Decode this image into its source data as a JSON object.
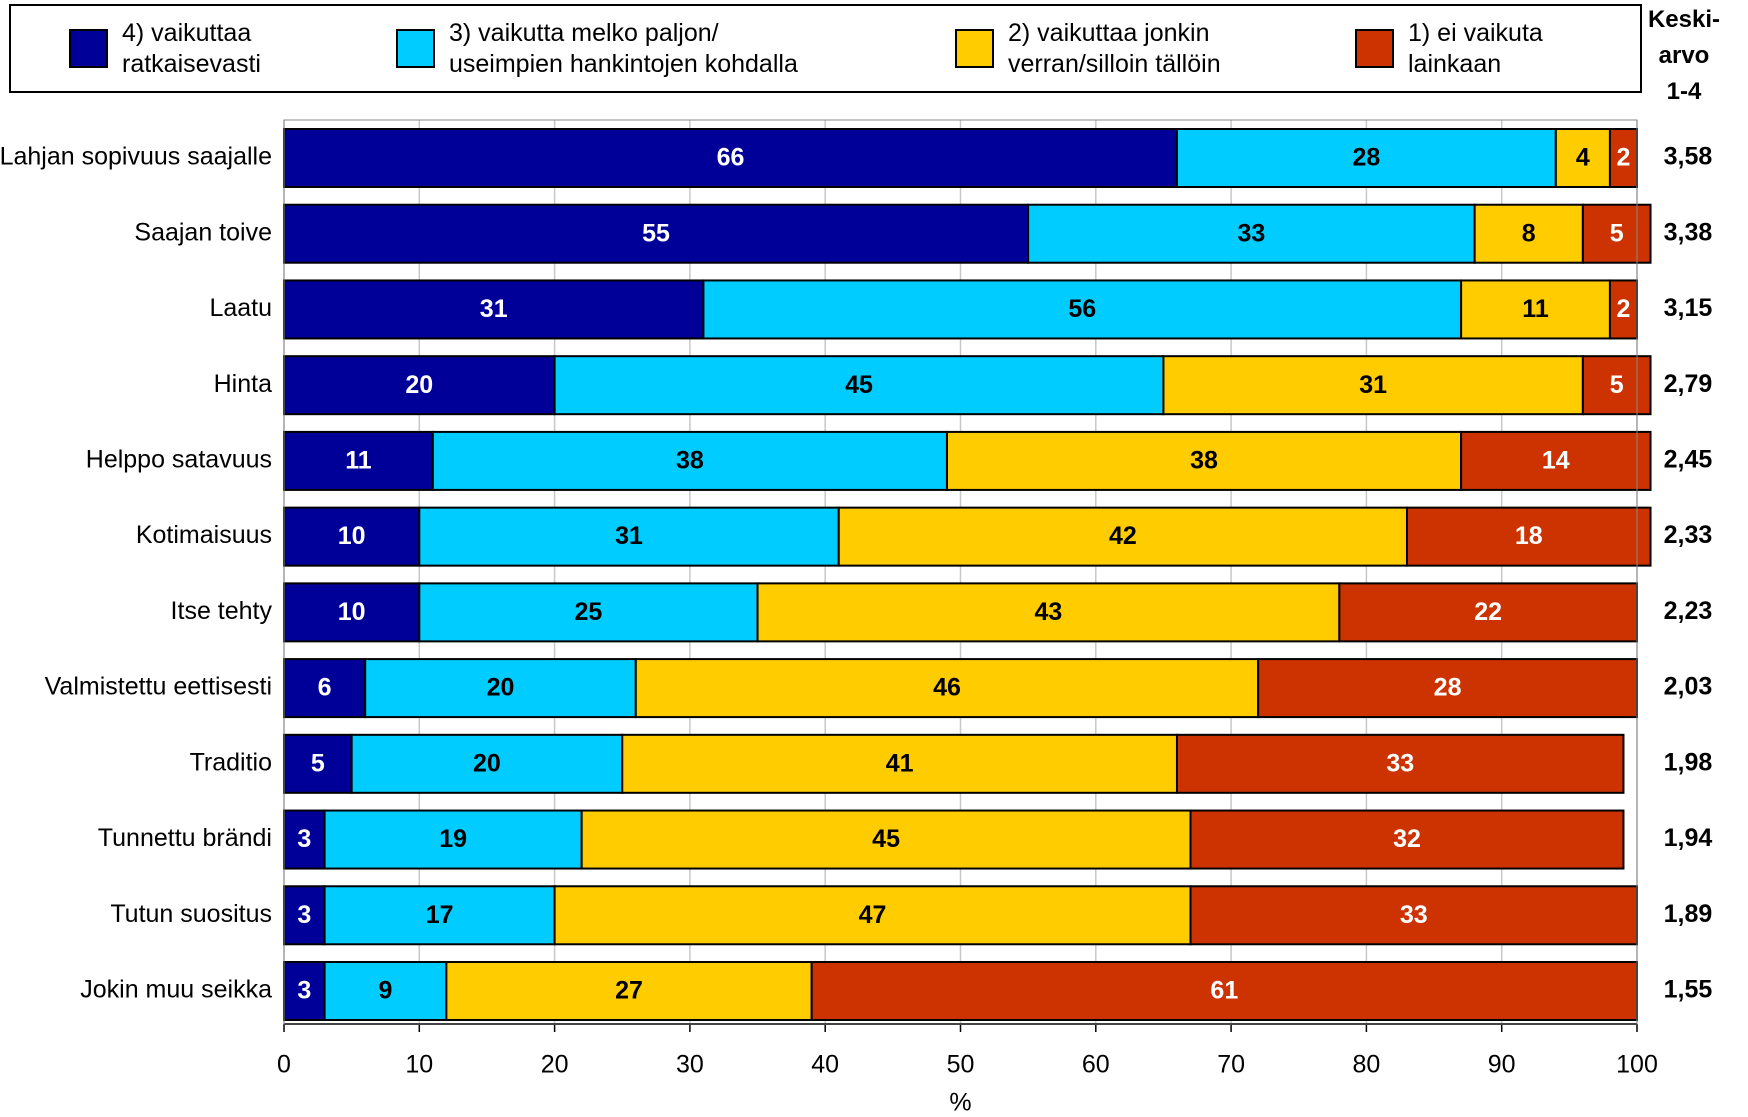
{
  "chart_data": {
    "type": "bar",
    "orientation": "horizontal",
    "stacked": true,
    "categories": [
      "Lahjan sopivuus saajalle",
      "Saajan toive",
      "Laatu",
      "Hinta",
      "Helppo satavuus",
      "Kotimaisuus",
      "Itse tehty",
      "Valmistettu eettisesti",
      "Traditio",
      "Tunnettu brändi",
      "Tutun suositus",
      "Jokin muu seikka"
    ],
    "series": [
      {
        "name": "4) vaikuttaa\nratkaisevasti",
        "color": "#000099",
        "label_color": "#ffffff",
        "values": [
          66,
          55,
          31,
          20,
          11,
          10,
          10,
          6,
          5,
          3,
          3,
          3
        ]
      },
      {
        "name": "3) vaikutta melko paljon/\nuseimpien hankintojen kohdalla",
        "color": "#00ccff",
        "label_color": "#000000",
        "values": [
          28,
          33,
          56,
          45,
          38,
          31,
          25,
          20,
          20,
          19,
          17,
          9
        ]
      },
      {
        "name": "2) vaikuttaa jonkin\nverran/silloin tällöin",
        "color": "#ffcc00",
        "label_color": "#000000",
        "values": [
          4,
          8,
          11,
          31,
          38,
          42,
          43,
          46,
          41,
          45,
          47,
          27
        ]
      },
      {
        "name": "1) ei vaikuta\nlainkaan",
        "color": "#cc3300",
        "label_color": "#ffffff",
        "values": [
          2,
          5,
          2,
          5,
          14,
          18,
          22,
          28,
          33,
          32,
          33,
          61
        ]
      }
    ],
    "mean_title": "Keski-\narvo\n1-4",
    "means": [
      {
        "value": 3.58,
        "label": "3,58"
      },
      {
        "value": 3.38,
        "label": "3,38"
      },
      {
        "value": 3.15,
        "label": "3,15"
      },
      {
        "value": 2.79,
        "label": "2,79"
      },
      {
        "value": 2.45,
        "label": "2,45"
      },
      {
        "value": 2.33,
        "label": "2,33"
      },
      {
        "value": 2.23,
        "label": "2,23"
      },
      {
        "value": 2.03,
        "label": "2,03"
      },
      {
        "value": 1.98,
        "label": "1,98"
      },
      {
        "value": 1.94,
        "label": "1,94"
      },
      {
        "value": 1.89,
        "label": "1,89"
      },
      {
        "value": 1.55,
        "label": "1,55"
      }
    ],
    "x_label": "%",
    "xlim": [
      0,
      100
    ],
    "xticks": [
      0,
      10,
      20,
      30,
      40,
      50,
      60,
      70,
      80,
      90,
      100
    ],
    "grid": true
  }
}
